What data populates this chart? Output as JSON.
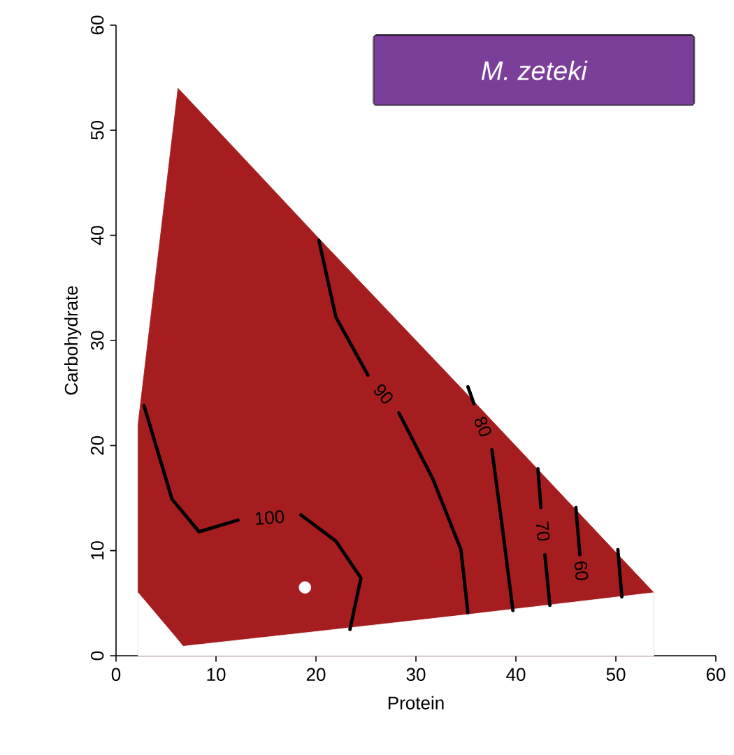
{
  "chart_data": {
    "type": "line",
    "xlabel": "Protein",
    "ylabel": "Carbohydrate",
    "xlim": [
      0,
      60
    ],
    "ylim": [
      0,
      60
    ],
    "xticks": [
      0,
      10,
      20,
      30,
      40,
      50,
      60
    ],
    "yticks": [
      0,
      10,
      20,
      30,
      40,
      50,
      60
    ],
    "grid": false,
    "line_style": "solid",
    "annotations": [
      "M. zeteki"
    ],
    "series": [
      {
        "type": "area",
        "color": "#a51d1f",
        "x": [
          2.2,
          6.2,
          6.7,
          20,
          35,
          53.8
        ],
        "values": [
          22,
          54,
          53.5,
          40,
          25,
          6
        ]
      },
      {
        "type": "area",
        "color": "#ffffff",
        "x": [
          2.2,
          6.2,
          6.7,
          20,
          35,
          53.8
        ],
        "values": [
          6,
          1.5,
          0.9,
          2.3,
          3.9,
          6
        ]
      },
      {
        "name": "100",
        "color": "#000000",
        "x": [
          2.8,
          5.6,
          8.3,
          12.2,
          null,
          18.5,
          22,
          24.5,
          23.4
        ],
        "values": [
          23.8,
          14.9,
          11.8,
          12.9,
          null,
          13.4,
          10.9,
          7.4,
          2.5
        ]
      },
      {
        "name": "90",
        "color": "#000000",
        "x": [
          20.3,
          22,
          25.2,
          null,
          28.3,
          31.7,
          34.5,
          35.2
        ],
        "values": [
          39.5,
          32.2,
          26.7,
          null,
          23.1,
          16.8,
          10.1,
          4.1
        ]
      },
      {
        "name": "80",
        "color": "#000000",
        "x": [
          35.2,
          35.8,
          null,
          37.6,
          38.7,
          39.7
        ],
        "values": [
          25.6,
          24.0,
          null,
          19.6,
          11.8,
          4.3
        ]
      },
      {
        "name": "70",
        "color": "#000000",
        "x": [
          42.2,
          42.5,
          null,
          42.9,
          43.4
        ],
        "values": [
          17.8,
          14.1,
          null,
          9.6,
          4.8
        ]
      },
      {
        "name": "60",
        "color": "#000000",
        "x": [
          46.0,
          46.4
        ],
        "values": [
          14.1,
          9.6
        ]
      },
      {
        "color": "#000000",
        "x": [
          50.2,
          50.6
        ],
        "values": [
          10.1,
          5.6
        ]
      },
      {
        "type": "scatter",
        "color": "#ffffff",
        "x": [
          18.9
        ],
        "values": [
          6.5
        ]
      }
    ]
  }
}
